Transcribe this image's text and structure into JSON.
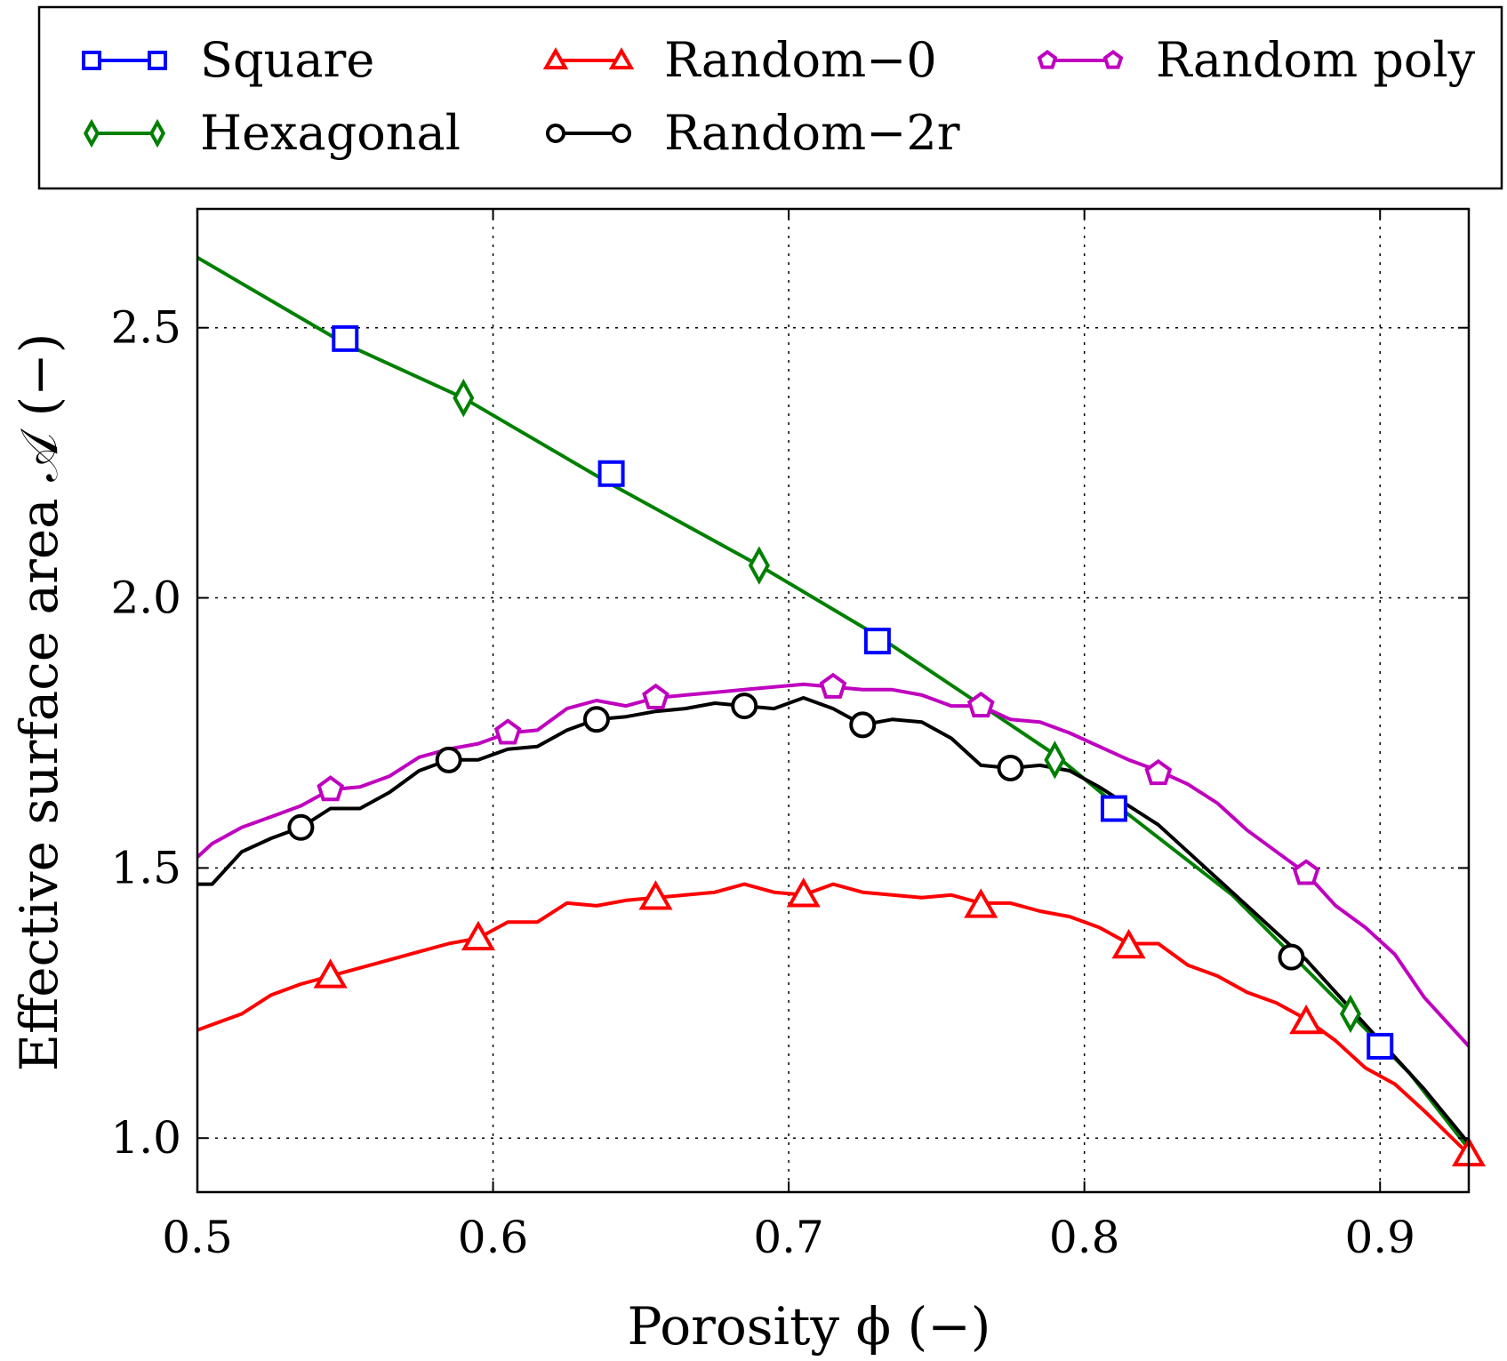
{
  "chart_data": {
    "type": "line",
    "title": "",
    "xlabel": "Porosity ϕ (−)",
    "ylabel": "Effective surface area 𝒜 (−)",
    "xlim": [
      0.5,
      0.93
    ],
    "ylim": [
      0.9,
      2.72
    ],
    "xticks": [
      0.5,
      0.6,
      0.7,
      0.8,
      0.9
    ],
    "xtick_labels": [
      "0.5",
      "0.6",
      "0.7",
      "0.8",
      "0.9"
    ],
    "yticks": [
      1.0,
      1.5,
      2.0,
      2.5
    ],
    "ytick_labels": [
      "1.0",
      "1.5",
      "2.0",
      "2.5"
    ],
    "grid": true,
    "legend_position": "top (above plot, 3 columns)",
    "series": [
      {
        "name": "Square",
        "color": "#0000ff",
        "marker": "square",
        "show_line": false,
        "x": [
          0.5,
          0.55,
          0.6,
          0.64,
          0.69,
          0.73,
          0.76,
          0.79,
          0.81,
          0.85,
          0.87,
          0.9,
          0.93
        ],
        "y": [
          2.63,
          2.47,
          2.31,
          2.2,
          2.05,
          1.93,
          1.82,
          1.71,
          1.61,
          1.45,
          1.33,
          1.17,
          0.98
        ],
        "marker_x": [
          0.55,
          0.64,
          0.73,
          0.81,
          0.9
        ],
        "marker_y": [
          2.48,
          2.23,
          1.92,
          1.61,
          1.17
        ]
      },
      {
        "name": "Hexagonal",
        "color": "#008000",
        "marker": "diamond",
        "show_line": true,
        "x": [
          0.5,
          0.55,
          0.59,
          0.64,
          0.69,
          0.73,
          0.76,
          0.79,
          0.81,
          0.85,
          0.87,
          0.89,
          0.91,
          0.93
        ],
        "y": [
          2.63,
          2.47,
          2.37,
          2.21,
          2.06,
          1.93,
          1.82,
          1.71,
          1.62,
          1.45,
          1.34,
          1.23,
          1.12,
          0.98
        ],
        "marker_x": [
          0.59,
          0.69,
          0.79,
          0.89
        ],
        "marker_y": [
          2.37,
          2.06,
          1.7,
          1.23
        ]
      },
      {
        "name": "Random−0",
        "color": "#ff0000",
        "marker": "triangle",
        "show_line": true,
        "x": [
          0.5,
          0.505,
          0.515,
          0.525,
          0.535,
          0.545,
          0.555,
          0.565,
          0.575,
          0.585,
          0.595,
          0.605,
          0.615,
          0.625,
          0.635,
          0.645,
          0.655,
          0.665,
          0.675,
          0.685,
          0.695,
          0.705,
          0.715,
          0.725,
          0.735,
          0.745,
          0.755,
          0.765,
          0.775,
          0.785,
          0.795,
          0.805,
          0.815,
          0.825,
          0.835,
          0.845,
          0.855,
          0.865,
          0.875,
          0.885,
          0.895,
          0.905,
          0.915,
          0.93
        ],
        "y": [
          1.2,
          1.21,
          1.23,
          1.265,
          1.285,
          1.3,
          1.315,
          1.33,
          1.345,
          1.36,
          1.37,
          1.4,
          1.4,
          1.435,
          1.43,
          1.44,
          1.445,
          1.45,
          1.455,
          1.47,
          1.455,
          1.45,
          1.47,
          1.455,
          1.45,
          1.445,
          1.45,
          1.435,
          1.435,
          1.42,
          1.41,
          1.39,
          1.36,
          1.36,
          1.32,
          1.3,
          1.27,
          1.25,
          1.22,
          1.18,
          1.13,
          1.1,
          1.05,
          0.97
        ],
        "marker_x": [
          0.545,
          0.595,
          0.655,
          0.705,
          0.765,
          0.815,
          0.875,
          0.93
        ],
        "marker_y": [
          1.3,
          1.37,
          1.445,
          1.45,
          1.43,
          1.355,
          1.215,
          0.97
        ]
      },
      {
        "name": "Random−2r",
        "color": "#000000",
        "marker": "circle",
        "show_line": true,
        "x": [
          0.5,
          0.505,
          0.515,
          0.525,
          0.535,
          0.545,
          0.555,
          0.565,
          0.575,
          0.585,
          0.595,
          0.605,
          0.615,
          0.625,
          0.635,
          0.645,
          0.655,
          0.665,
          0.675,
          0.685,
          0.695,
          0.705,
          0.715,
          0.725,
          0.735,
          0.745,
          0.755,
          0.765,
          0.775,
          0.785,
          0.795,
          0.805,
          0.815,
          0.825,
          0.835,
          0.845,
          0.855,
          0.865,
          0.875,
          0.885,
          0.895,
          0.905,
          0.915,
          0.93
        ],
        "y": [
          1.47,
          1.47,
          1.53,
          1.555,
          1.575,
          1.61,
          1.61,
          1.64,
          1.68,
          1.7,
          1.7,
          1.72,
          1.725,
          1.755,
          1.775,
          1.78,
          1.79,
          1.795,
          1.805,
          1.8,
          1.795,
          1.815,
          1.795,
          1.765,
          1.775,
          1.77,
          1.74,
          1.69,
          1.685,
          1.69,
          1.68,
          1.65,
          1.615,
          1.58,
          1.53,
          1.48,
          1.43,
          1.38,
          1.33,
          1.27,
          1.21,
          1.15,
          1.09,
          0.99
        ],
        "marker_x": [
          0.535,
          0.585,
          0.635,
          0.685,
          0.725,
          0.775,
          0.87
        ],
        "marker_y": [
          1.575,
          1.7,
          1.775,
          1.8,
          1.765,
          1.685,
          1.335
        ]
      },
      {
        "name": "Random poly",
        "color": "#bf00bf",
        "marker": "pentagon",
        "show_line": true,
        "x": [
          0.5,
          0.505,
          0.515,
          0.525,
          0.535,
          0.545,
          0.555,
          0.565,
          0.575,
          0.585,
          0.595,
          0.605,
          0.615,
          0.625,
          0.635,
          0.645,
          0.655,
          0.665,
          0.675,
          0.685,
          0.695,
          0.705,
          0.715,
          0.725,
          0.735,
          0.745,
          0.755,
          0.765,
          0.775,
          0.785,
          0.795,
          0.805,
          0.815,
          0.825,
          0.835,
          0.845,
          0.855,
          0.865,
          0.875,
          0.885,
          0.895,
          0.905,
          0.915,
          0.93
        ],
        "y": [
          1.52,
          1.545,
          1.575,
          1.595,
          1.615,
          1.645,
          1.65,
          1.67,
          1.705,
          1.72,
          1.73,
          1.75,
          1.755,
          1.795,
          1.81,
          1.8,
          1.815,
          1.82,
          1.825,
          1.83,
          1.835,
          1.84,
          1.835,
          1.83,
          1.83,
          1.82,
          1.8,
          1.8,
          1.775,
          1.77,
          1.75,
          1.725,
          1.7,
          1.68,
          1.655,
          1.62,
          1.57,
          1.53,
          1.49,
          1.43,
          1.39,
          1.34,
          1.26,
          1.17
        ],
        "marker_x": [
          0.545,
          0.605,
          0.655,
          0.715,
          0.765,
          0.825,
          0.875
        ],
        "marker_y": [
          1.645,
          1.75,
          1.815,
          1.835,
          1.8,
          1.675,
          1.49
        ]
      }
    ]
  }
}
